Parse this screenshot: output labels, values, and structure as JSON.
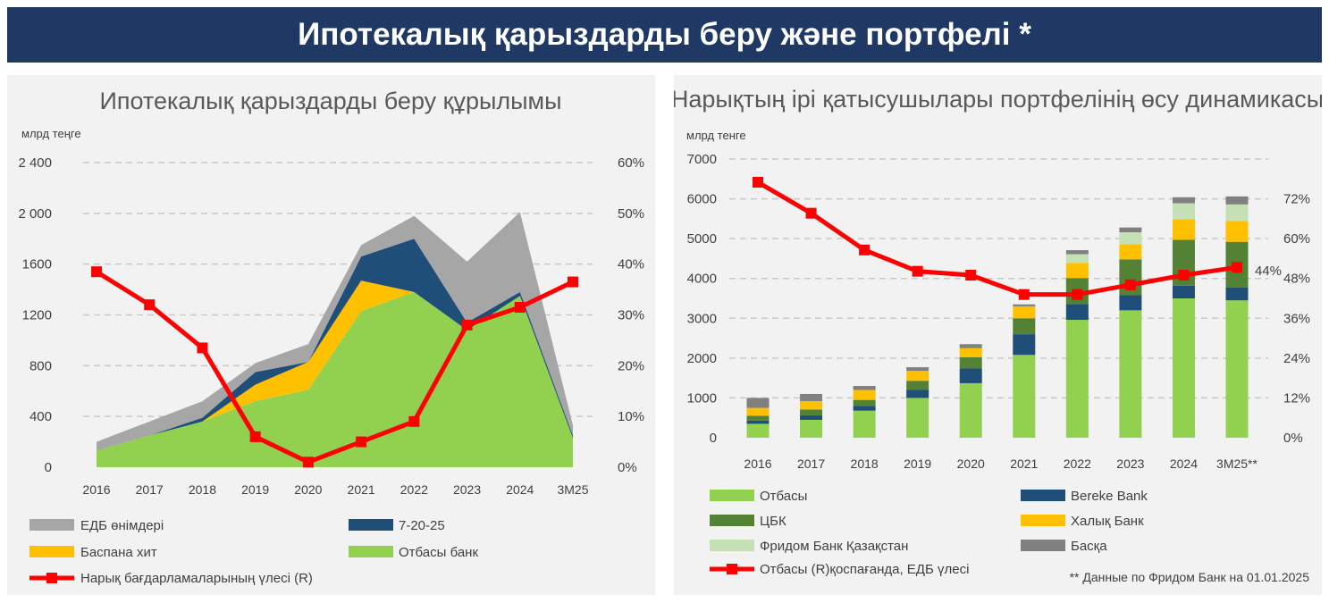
{
  "header": {
    "title": "Ипотекалық қарыздарды беру және портфелі *"
  },
  "left_panel": {
    "title": "Ипотекалық қарыздарды беру құрылымы",
    "unit": "млрд теңге",
    "legend": [
      "ЕДБ өнімдері",
      "7-20-25",
      "Баспана хит",
      "Отбасы банк",
      "Нарық бағдарламаларының үлесі (R)"
    ]
  },
  "right_panel": {
    "title": "Нарықтың ірі қатысушылары портфелінің өсу динамикасы",
    "unit": "млрд тенге",
    "legend": [
      "Отбасы",
      "Bereke Bank",
      "ЦБК",
      "Халық Банк",
      "Фридом Банк Қазақстан",
      "Басқа",
      "Отбасы (R)қоспағанда, ЕДБ үлесі"
    ],
    "note": "** Данные по Фридом Банк на 01.01.2025",
    "last_label": "44%"
  },
  "chart_data": [
    {
      "type": "area",
      "title": "Ипотекалық қарыздарды беру құрылымы",
      "ylabel": "млрд теңге",
      "categories": [
        "2016",
        "2017",
        "2018",
        "2019",
        "2020",
        "2021",
        "2022",
        "2023",
        "2024",
        "3М25"
      ],
      "ylim": [
        0,
        2400
      ],
      "y_ticks": [
        "0",
        "400",
        "800",
        "1200",
        "1600",
        "2 000",
        "2 400"
      ],
      "y2lim": [
        0,
        60
      ],
      "y2_ticks": [
        "0%",
        "10%",
        "20%",
        "30%",
        "40%",
        "50%",
        "60%"
      ],
      "stacking": "stacked",
      "series": [
        {
          "name": "Отбасы банк",
          "color": "#92d050",
          "values": [
            130,
            250,
            360,
            520,
            610,
            1230,
            1380,
            1080,
            1350,
            230
          ]
        },
        {
          "name": "Баспана хит",
          "color": "#ffc000",
          "values": [
            0,
            0,
            0,
            130,
            220,
            240,
            0,
            0,
            0,
            0
          ]
        },
        {
          "name": "7-20-25",
          "color": "#1f4e79",
          "values": [
            0,
            0,
            30,
            100,
            0,
            190,
            420,
            60,
            30,
            20
          ]
        },
        {
          "name": "ЕДБ өнімдері",
          "color": "#a6a6a6",
          "values": [
            70,
            110,
            130,
            70,
            140,
            90,
            180,
            480,
            630,
            80
          ]
        }
      ],
      "line_series": {
        "name": "Нарық бағдарламаларының үлесі (R)",
        "color": "#ff0000",
        "axis": "right",
        "values": [
          38.5,
          32,
          23.5,
          6,
          1,
          5,
          9,
          28,
          31.5,
          36.5
        ]
      },
      "grid": true,
      "legend_position": "bottom"
    },
    {
      "type": "bar",
      "title": "Нарықтың ірі қатысушылары портфелінің өсу динамикасы",
      "ylabel": "млрд тенге",
      "categories": [
        "2016",
        "2017",
        "2018",
        "2019",
        "2020",
        "2021",
        "2022",
        "2023",
        "2024",
        "3М25**"
      ],
      "ylim": [
        0,
        7000
      ],
      "y_ticks": [
        "0",
        "1000",
        "2000",
        "3000",
        "4000",
        "5000",
        "6000",
        "7000"
      ],
      "y2lim": [
        0,
        72
      ],
      "y2_ticks": [
        "0%",
        "12%",
        "24%",
        "36%",
        "48%",
        "60%",
        "72%"
      ],
      "stacking": "stacked",
      "series": [
        {
          "name": "Отбасы",
          "color": "#92d050",
          "values": [
            350,
            450,
            680,
            1000,
            1370,
            2080,
            2960,
            3200,
            3500,
            3450
          ]
        },
        {
          "name": "Bereke Bank",
          "color": "#1f4e79",
          "values": [
            80,
            110,
            120,
            200,
            370,
            520,
            400,
            380,
            320,
            320
          ]
        },
        {
          "name": "ЦБК",
          "color": "#548235",
          "values": [
            120,
            150,
            150,
            230,
            280,
            400,
            650,
            900,
            1150,
            1150
          ]
        },
        {
          "name": "Халық Банк",
          "color": "#ffc000",
          "values": [
            200,
            210,
            250,
            250,
            230,
            300,
            380,
            380,
            520,
            520
          ]
        },
        {
          "name": "Фридом Банк Қазақстан",
          "color": "#c5e0b4",
          "values": [
            0,
            0,
            0,
            0,
            0,
            0,
            220,
            300,
            400,
            420
          ]
        },
        {
          "name": "Басқа",
          "color": "#808080",
          "values": [
            250,
            180,
            100,
            90,
            100,
            50,
            100,
            120,
            150,
            200
          ]
        }
      ],
      "line_series": {
        "name": "Отбасы (R)қоспағанда, ЕДБ үлесі",
        "color": "#ff0000",
        "axis": "right",
        "values": [
          66,
          58,
          48.5,
          43,
          42,
          37,
          37,
          39.5,
          42,
          44
        ]
      },
      "grid": true,
      "legend_position": "bottom"
    }
  ]
}
